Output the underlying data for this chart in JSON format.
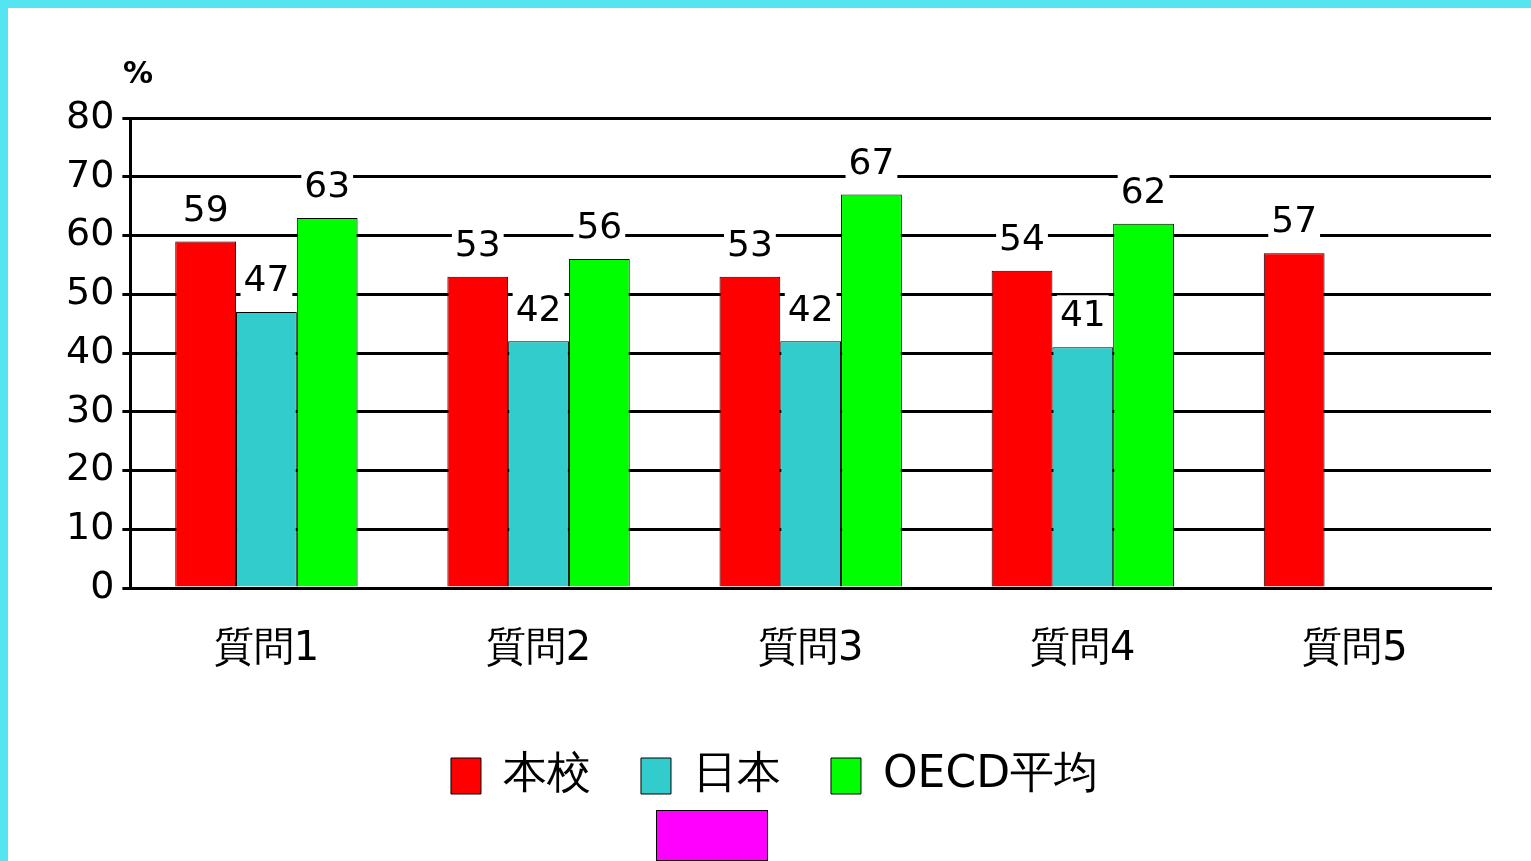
{
  "chart_data": {
    "type": "bar",
    "ylabel": "%",
    "categories": [
      "質問1",
      "質問2",
      "質問3",
      "質問4",
      "質問5"
    ],
    "series": [
      {
        "name": "本校",
        "color": "#ff0000",
        "values": [
          59,
          53,
          53,
          54,
          57
        ]
      },
      {
        "name": "日本",
        "color": "#33cccc",
        "values": [
          47,
          42,
          42,
          41,
          null
        ]
      },
      {
        "name": "OECD平均",
        "color": "#00ff00",
        "values": [
          63,
          56,
          67,
          62,
          null
        ]
      }
    ],
    "ylim": [
      0,
      80
    ],
    "yticks": [
      0,
      10,
      20,
      30,
      40,
      50,
      60,
      70,
      80
    ],
    "grid": "y",
    "legend": "bottom",
    "data_labels": true
  }
}
